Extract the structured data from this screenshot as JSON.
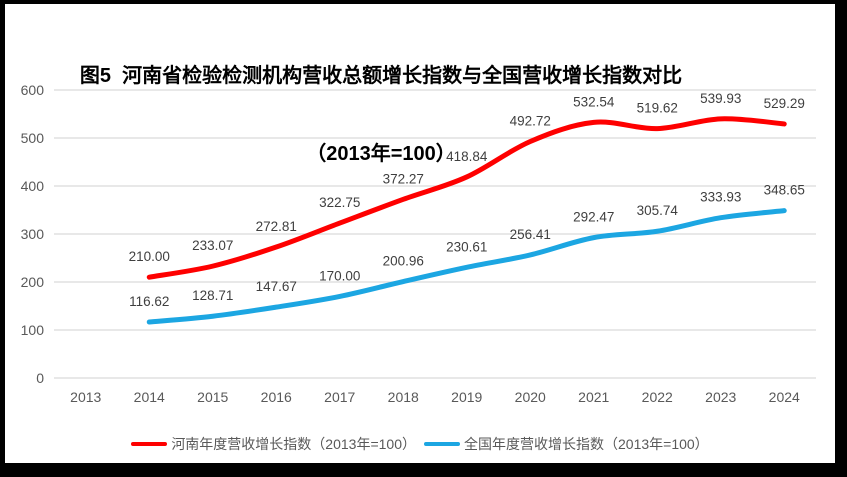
{
  "frame": {
    "border_color": "#000000",
    "background": "#ffffff"
  },
  "title": {
    "line1": "图5  河南省检验检测机构营收总额增长指数与全国营收增长指数对比",
    "line2": "（2013年=100）"
  },
  "chart_data": {
    "type": "line",
    "categories": [
      "2013",
      "2014",
      "2015",
      "2016",
      "2017",
      "2018",
      "2019",
      "2020",
      "2021",
      "2022",
      "2023",
      "2024"
    ],
    "series": [
      {
        "key": "henan",
        "name": "河南年度营收增长指数（2013年=100）",
        "color": "#FE0000",
        "values": [
          null,
          210.0,
          233.07,
          272.81,
          322.75,
          372.27,
          418.84,
          492.72,
          532.54,
          519.62,
          539.93,
          529.29
        ]
      },
      {
        "key": "national",
        "name": "全国年度营收增长指数（2013年=100）",
        "color": "#1CA6E2",
        "values": [
          null,
          116.62,
          128.71,
          147.67,
          170.0,
          200.96,
          230.61,
          256.41,
          292.47,
          305.74,
          333.93,
          348.65
        ]
      }
    ],
    "ylim": [
      0,
      600
    ],
    "y_ticks": [
      0,
      100,
      200,
      300,
      400,
      500,
      600
    ],
    "grid": true,
    "data_labels": true,
    "label_decimals": 2,
    "legend_position": "bottom"
  },
  "colors": {
    "grid": "#D9D9D9",
    "axis_text": "#595959",
    "data_label_text": "#3F3F3F"
  }
}
